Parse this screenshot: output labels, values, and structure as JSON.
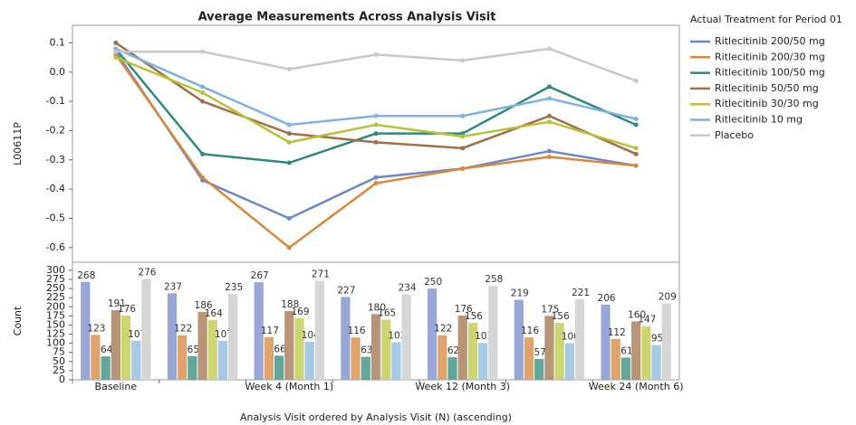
{
  "chart_data": [
    {
      "type": "line",
      "title": "Average Measurements Across Analysis Visit",
      "y_label": "L00611P",
      "legend_title": "Actual Treatment for Period 01",
      "categories": [
        "Baseline",
        null,
        "Week 4 (Month 1)",
        null,
        "Week 12 (Month 3)",
        null,
        "Week 24 (Month 6)"
      ],
      "ylim": [
        -0.65,
        0.16
      ],
      "yticks": [
        0.1,
        {
          "value": 0,
          "label": "0.0"
        },
        -0.1,
        -0.2,
        -0.3,
        -0.4,
        -0.5,
        -0.6
      ],
      "series": [
        {
          "name": "Ritlecitinib 200/50 mg",
          "color": "#6f87c9",
          "values": [
            0.07,
            -0.37,
            -0.5,
            -0.36,
            -0.33,
            -0.27,
            -0.32
          ]
        },
        {
          "name": "Ritlecitinib 200/30 mg",
          "color": "#d9883a",
          "values": [
            0.06,
            -0.36,
            -0.6,
            -0.38,
            -0.33,
            -0.29,
            -0.32
          ]
        },
        {
          "name": "Ritlecitinib 100/50 mg",
          "color": "#2e8b7a",
          "values": [
            0.08,
            -0.28,
            -0.31,
            -0.21,
            -0.21,
            -0.05,
            -0.18
          ]
        },
        {
          "name": "Ritlecitinib 50/50 mg",
          "color": "#a0704a",
          "values": [
            0.1,
            -0.1,
            -0.21,
            -0.24,
            -0.26,
            -0.15,
            -0.28
          ]
        },
        {
          "name": "Ritlecitinib 30/30 mg",
          "color": "#b5c23a",
          "values": [
            0.05,
            -0.07,
            -0.24,
            -0.18,
            -0.22,
            -0.17,
            -0.26
          ]
        },
        {
          "name": "Ritlecitinib 10 mg",
          "color": "#7fb2de",
          "values": [
            0.08,
            -0.05,
            -0.18,
            -0.15,
            -0.15,
            -0.09,
            -0.16
          ]
        },
        {
          "name": "Placebo",
          "color": "#c8c8c8",
          "values": [
            0.07,
            0.07,
            0.01,
            0.06,
            0.04,
            0.08,
            -0.03
          ]
        }
      ]
    },
    {
      "type": "bar",
      "y_label": "Count",
      "x_label": "Analysis Visit ordered by Analysis Visit (N) (ascending)",
      "ylim": [
        0,
        322
      ],
      "yticks": [
        0,
        25,
        50,
        75,
        100,
        125,
        150,
        175,
        200,
        225,
        250,
        275,
        300
      ],
      "series": [
        {
          "color": "#97a8d8",
          "values": [
            268,
            237,
            267,
            227,
            250,
            219,
            206
          ]
        },
        {
          "color": "#e0a46a",
          "values": [
            123,
            122,
            117,
            116,
            122,
            116,
            112
          ]
        },
        {
          "color": "#5fa899",
          "values": [
            64,
            65,
            66,
            63,
            62,
            57,
            61
          ]
        },
        {
          "color": "#b89478",
          "values": [
            191,
            186,
            188,
            180,
            176,
            175,
            160
          ]
        },
        {
          "color": "#ccd670",
          "values": [
            176,
            164,
            169,
            165,
            156,
            156,
            147
          ]
        },
        {
          "color": "#a6c9e8",
          "values": [
            107,
            107,
            104,
            103,
            101,
            100,
            95
          ]
        },
        {
          "color": "#d6d6d6",
          "values": [
            276,
            235,
            271,
            234,
            258,
            221,
            209
          ]
        }
      ]
    }
  ]
}
